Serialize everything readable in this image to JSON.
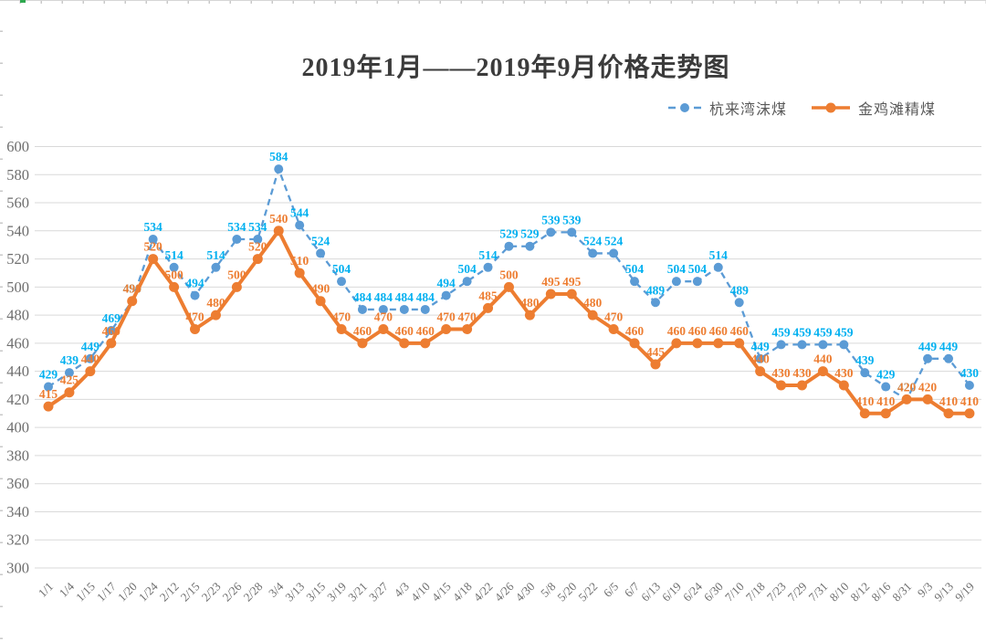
{
  "chart_data": {
    "type": "line",
    "title": "2019年1月——2019年9月价格走势图",
    "categories": [
      "1/1",
      "1/4",
      "1/15",
      "1/17",
      "1/20",
      "1/24",
      "2/12",
      "2/15",
      "2/23",
      "2/26",
      "2/28",
      "3/4",
      "3/13",
      "3/15",
      "3/19",
      "3/21",
      "3/27",
      "4/3",
      "4/10",
      "4/15",
      "4/18",
      "4/22",
      "4/26",
      "4/30",
      "5/8",
      "5/20",
      "5/22",
      "6/5",
      "6/7",
      "6/13",
      "6/19",
      "6/24",
      "6/30",
      "7/10",
      "7/18",
      "7/23",
      "7/29",
      "7/31",
      "8/10",
      "8/12",
      "8/16",
      "8/31",
      "9/3",
      "9/13",
      "9/19"
    ],
    "series": [
      {
        "name": "杭来湾沫煤",
        "style": "dashed",
        "color": "#5B9BD5",
        "label_color": "#00B0F0",
        "values": [
          429,
          439,
          449,
          469,
          490,
          534,
          514,
          494,
          514,
          534,
          534,
          584,
          544,
          524,
          504,
          484,
          484,
          484,
          484,
          494,
          504,
          514,
          529,
          529,
          539,
          539,
          524,
          524,
          504,
          489,
          504,
          504,
          514,
          489,
          449,
          459,
          459,
          459,
          459,
          439,
          429,
          420,
          449,
          449,
          430
        ]
      },
      {
        "name": "金鸡滩精煤",
        "style": "solid",
        "color": "#ED7D31",
        "label_color": "#ED7D31",
        "values": [
          415,
          425,
          440,
          460,
          490,
          520,
          500,
          470,
          480,
          500,
          520,
          540,
          510,
          490,
          470,
          460,
          470,
          460,
          460,
          470,
          470,
          485,
          500,
          480,
          495,
          495,
          480,
          470,
          460,
          445,
          460,
          460,
          460,
          460,
          440,
          430,
          430,
          440,
          430,
          410,
          410,
          420,
          420,
          410,
          410
        ]
      }
    ],
    "ylim": [
      300,
      600
    ],
    "ytick_step": 20,
    "yticks": [
      "300",
      "320",
      "340",
      "360",
      "380",
      "400",
      "420",
      "440",
      "460",
      "480",
      "500",
      "520",
      "540",
      "560",
      "580",
      "600"
    ],
    "grid": true,
    "legend_position": "top-right",
    "grid_color": "#D9D9D9",
    "axis_text_color": "#6E6E6E",
    "data_labels": true
  }
}
